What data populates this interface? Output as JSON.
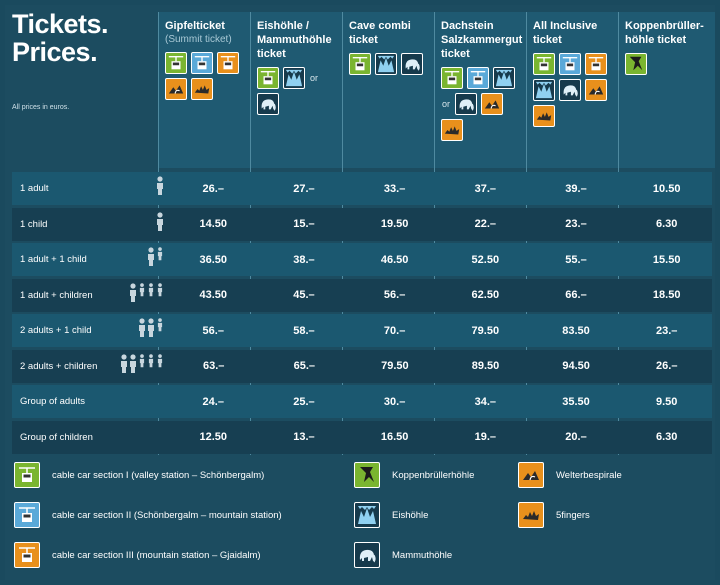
{
  "title_line1": "Tickets.",
  "title_line2": "Prices.",
  "note": "All prices in euros.",
  "columns": [
    {
      "name": "Gipfelticket",
      "sub": "(Summit ticket)"
    },
    {
      "name": "Eishöhle / Mammuthöhle ticket",
      "sub": ""
    },
    {
      "name": "Cave combi ticket",
      "sub": ""
    },
    {
      "name": "Dachstein Salzkammergut ticket",
      "sub": ""
    },
    {
      "name": "All Inclusive ticket",
      "sub": ""
    },
    {
      "name": "Koppenbrüller-höhle ticket",
      "sub": ""
    }
  ],
  "or_label": "or",
  "rows": [
    {
      "label": "1 adult",
      "people": 1,
      "prices": [
        "26.–",
        "27.–",
        "33.–",
        "37.–",
        "39.–",
        "10.50"
      ]
    },
    {
      "label": "1 child",
      "people": 1,
      "prices": [
        "14.50",
        "15.–",
        "19.50",
        "22.–",
        "23.–",
        "6.30"
      ]
    },
    {
      "label": "1 adult + 1 child",
      "people": 2,
      "prices": [
        "36.50",
        "38.–",
        "46.50",
        "52.50",
        "55.–",
        "15.50"
      ]
    },
    {
      "label": "1 adult + children",
      "people": 4,
      "prices": [
        "43.50",
        "45.–",
        "56.–",
        "62.50",
        "66.–",
        "18.50"
      ]
    },
    {
      "label": "2 adults + 1 child",
      "people": 3,
      "prices": [
        "56.–",
        "58.–",
        "70.–",
        "79.50",
        "83.50",
        "23.–"
      ]
    },
    {
      "label": "2 adults + children",
      "people": 5,
      "prices": [
        "63.–",
        "65.–",
        "79.50",
        "89.50",
        "94.50",
        "26.–"
      ]
    },
    {
      "label": "Group of adults",
      "people": 0,
      "prices": [
        "24.–",
        "25.–",
        "30.–",
        "34.–",
        "35.50",
        "9.50"
      ]
    },
    {
      "label": "Group of children",
      "people": 0,
      "prices": [
        "12.50",
        "13.–",
        "16.50",
        "19.–",
        "20.–",
        "6.30"
      ]
    }
  ],
  "legend": [
    {
      "icon": "cable-car-icon",
      "color": "#7ab530",
      "label": "cable car section I (valley station – Schönbergalm)"
    },
    {
      "icon": "cable-car-icon",
      "color": "#5aa9d8",
      "label": "cable car section II (Schönbergalm – mountain station)"
    },
    {
      "icon": "cable-car-icon",
      "color": "#e8901c",
      "label": "cable car section III (mountain station – Gjaidalm)"
    },
    {
      "icon": "bat-icon",
      "color": "#7ab530",
      "label": "Koppenbrüllerhöhle"
    },
    {
      "icon": "ice-cave-icon",
      "color": "#163a4c",
      "label": "Eishöhle"
    },
    {
      "icon": "mammoth-icon",
      "color": "#163a4c",
      "label": "Mammuthöhle"
    },
    {
      "icon": "spiral-icon",
      "color": "#e8901c",
      "label": "Welterbespirale"
    },
    {
      "icon": "fingers-icon",
      "color": "#e8901c",
      "label": "5fingers"
    }
  ]
}
